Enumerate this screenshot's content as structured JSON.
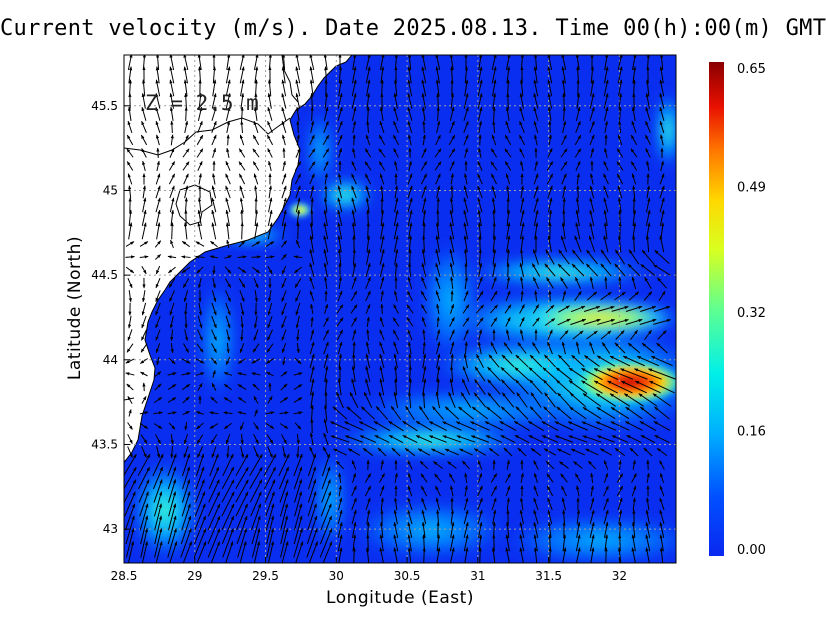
{
  "title": "Current velocity (m/s). Date 2025.08.13. Time 00(h):00(m) GMT",
  "depth_label": "Z = 2.5 m",
  "xlabel": "Longitude (East)",
  "ylabel": "Latitude (North)",
  "x_ticks": [
    "28.5",
    "29",
    "29.5",
    "30",
    "30.5",
    "31",
    "31.5",
    "32"
  ],
  "y_ticks": [
    "45.5",
    "45",
    "44.5",
    "44",
    "43.5",
    "43"
  ],
  "colorbar_ticks": [
    "0.65",
    "0.49",
    "0.32",
    "0.16",
    "0.00"
  ],
  "map": {
    "lon_range": [
      28.5,
      32.4
    ],
    "lat_range": [
      42.8,
      45.8
    ],
    "grid": true,
    "colormap": [
      "#0000c8",
      "#0a28f0",
      "#0070ff",
      "#00c8ff",
      "#40ffc0",
      "#c0ff40",
      "#ffe000",
      "#ff7000",
      "#e00000",
      "#900000"
    ],
    "land_color": "#ffffff",
    "coast_color": "#000000",
    "vector_color": "#000000",
    "colorbar_range": [
      0.0,
      0.65
    ]
  }
}
